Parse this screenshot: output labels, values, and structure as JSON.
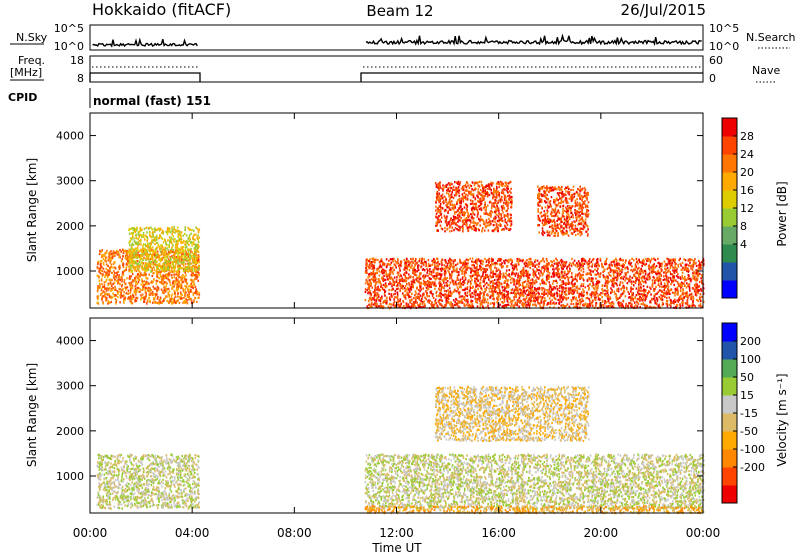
{
  "header": {
    "site": "Hokkaido (fitACF)",
    "beam": "Beam 12",
    "date": "26/Jul/2015"
  },
  "params": {
    "nsky_label": "N.Sky",
    "nsky_ticks": [
      "10^5",
      "10^0"
    ],
    "nsearch_label": "N.Search",
    "nsearch_ticks": [
      "10^5",
      "10^0"
    ],
    "freq_label": "Freq.",
    "freq_unit": "[MHz]",
    "freq_ticks": [
      "18",
      "8"
    ],
    "nave_label": "Nave",
    "nave_ticks": [
      "60",
      "0"
    ],
    "cpid_label": "CPID",
    "cpid_value": "normal (fast) 151"
  },
  "chart_data": [
    {
      "type": "heatmap",
      "title": "",
      "xlabel": "Time UT",
      "ylabel": "Slant Range [km]",
      "x_ticks": [
        "00:00",
        "04:00",
        "08:00",
        "12:00",
        "16:00",
        "20:00",
        "00:00"
      ],
      "y_ticks": [
        "1000",
        "2000",
        "3000",
        "4000"
      ],
      "xlim": [
        "00:00",
        "24:00"
      ],
      "ylim": [
        180,
        4500
      ],
      "data_gaps": [
        [
          "04:15",
          "10:45"
        ]
      ],
      "colorbar": {
        "label": "Power [dB]",
        "ticks": [
          "28",
          "24",
          "20",
          "16",
          "12",
          "8",
          "4"
        ],
        "range": [
          0,
          32
        ],
        "colors": [
          "#0000ff",
          "#2255aa",
          "#2e8a4e",
          "#66aa66",
          "#99cc33",
          "#ddcc00",
          "#ffaa00",
          "#ff7700",
          "#ff4400",
          "#ee0000"
        ]
      },
      "features": [
        {
          "t": [
            0.25,
            4.25
          ],
          "range_km": [
            300,
            1500
          ],
          "level": 24
        },
        {
          "t": [
            1.5,
            4.25
          ],
          "range_km": [
            1000,
            2000
          ],
          "level": 18
        },
        {
          "t": [
            10.75,
            24.0
          ],
          "range_km": [
            500,
            1300
          ],
          "level": 28
        },
        {
          "t": [
            10.75,
            24.0
          ],
          "range_km": [
            200,
            500
          ],
          "level": 28
        },
        {
          "t": [
            13.5,
            16.5
          ],
          "range_km": [
            1900,
            3000
          ],
          "level": 28
        },
        {
          "t": [
            17.5,
            19.5
          ],
          "range_km": [
            1800,
            2900
          ],
          "level": 26
        }
      ]
    },
    {
      "type": "heatmap",
      "title": "",
      "xlabel": "Time UT",
      "ylabel": "Slant Range [km]",
      "x_ticks": [
        "00:00",
        "04:00",
        "08:00",
        "12:00",
        "16:00",
        "20:00",
        "00:00"
      ],
      "y_ticks": [
        "1000",
        "2000",
        "3000",
        "4000"
      ],
      "xlim": [
        "00:00",
        "24:00"
      ],
      "ylim": [
        180,
        4500
      ],
      "data_gaps": [
        [
          "04:15",
          "10:45"
        ]
      ],
      "colorbar": {
        "label": "Velocity [m s⁻¹]",
        "ticks": [
          "200",
          "100",
          "50",
          "15",
          "-15",
          "-50",
          "-100",
          "-200"
        ],
        "range": [
          -250,
          250
        ],
        "colors": [
          "#ee0000",
          "#ff4400",
          "#ff8800",
          "#ffaa00",
          "#ddbb66",
          "#c8c8c8",
          "#99cc33",
          "#55aa55",
          "#2255aa",
          "#0000ff"
        ]
      },
      "features": [
        {
          "t": [
            0.25,
            4.25
          ],
          "range_km": [
            300,
            1500
          ],
          "level": 0
        },
        {
          "t": [
            10.75,
            24.0
          ],
          "range_km": [
            300,
            1500
          ],
          "level": 0
        },
        {
          "t": [
            13.5,
            19.5
          ],
          "range_km": [
            1800,
            3000
          ],
          "level": -20
        },
        {
          "t": [
            10.75,
            24.0
          ],
          "range_km": [
            200,
            350
          ],
          "level": -60
        }
      ]
    }
  ]
}
